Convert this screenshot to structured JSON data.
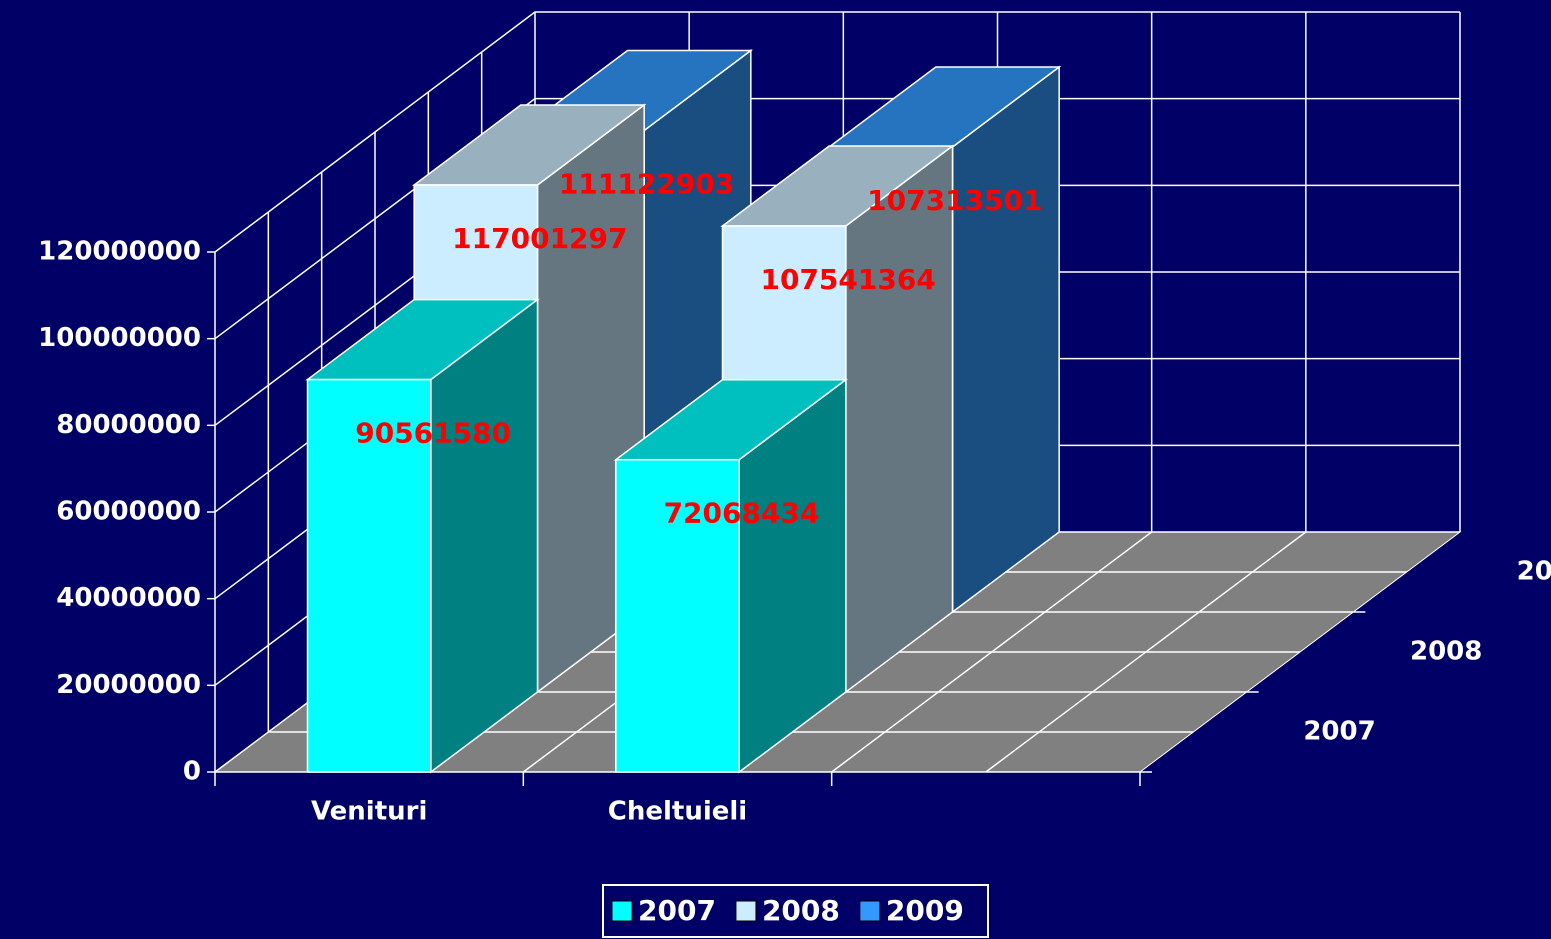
{
  "chart_data": {
    "type": "bar3d",
    "categories": [
      "Venituri",
      "Cheltuieli",
      null
    ],
    "series": [
      {
        "name": "2007",
        "color": "#00ffff",
        "values": [
          90561580,
          72068434,
          null
        ]
      },
      {
        "name": "2008",
        "color": "#ccecff",
        "values": [
          117001297,
          107541364,
          null
        ]
      },
      {
        "name": "2009",
        "color": "#3399ff",
        "values": [
          111122903,
          107313501,
          null
        ]
      }
    ],
    "ylim": [
      0,
      120000000
    ],
    "yticks": [
      0,
      20000000,
      40000000,
      60000000,
      80000000,
      100000000,
      120000000
    ],
    "grid": true,
    "legend": "bottom"
  }
}
